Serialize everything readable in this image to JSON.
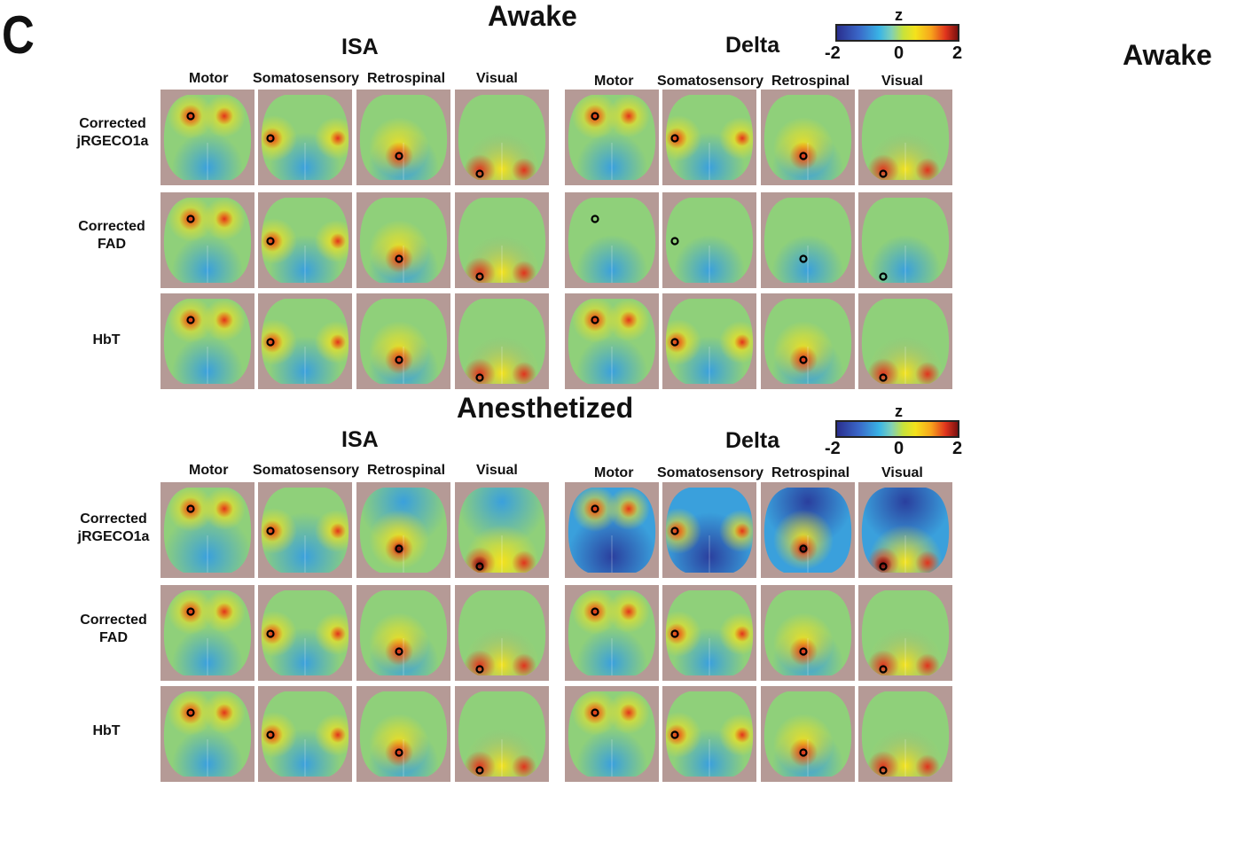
{
  "panel_letter": "C",
  "side_label": "Awake",
  "sections": [
    {
      "id": "awake",
      "title": "Awake",
      "groups": [
        {
          "id": "isa",
          "title": "ISA"
        },
        {
          "id": "delta",
          "title": "Delta"
        }
      ],
      "columns": [
        "Motor",
        "Somatosensory",
        "Retrospinal",
        "Visual"
      ],
      "rows": [
        "Corrected\njRGECO1a",
        "Corrected\nFAD",
        "HbT"
      ],
      "colorbar": {
        "label": "z",
        "min": "-2",
        "mid": "0",
        "max": "2"
      }
    },
    {
      "id": "anesthetized",
      "title": "Anesthetized",
      "groups": [
        {
          "id": "isa",
          "title": "ISA"
        },
        {
          "id": "delta",
          "title": "Delta"
        }
      ],
      "columns": [
        "Motor",
        "Somatosensory",
        "Retrospinal",
        "Visual"
      ],
      "rows": [
        "Corrected\njRGECO1a",
        "Corrected\nFAD",
        "HbT"
      ],
      "colorbar": {
        "label": "z",
        "min": "-2",
        "mid": "0",
        "max": "2"
      }
    }
  ],
  "colors": {
    "neg_strong": "#2a3f9e",
    "neg": "#3aa0dc",
    "neutral": "#8fd07a",
    "pos": "#f4e21c",
    "pos_strong": "#e0341d",
    "peak": "#7b1010",
    "skull": "#b59a96"
  }
}
